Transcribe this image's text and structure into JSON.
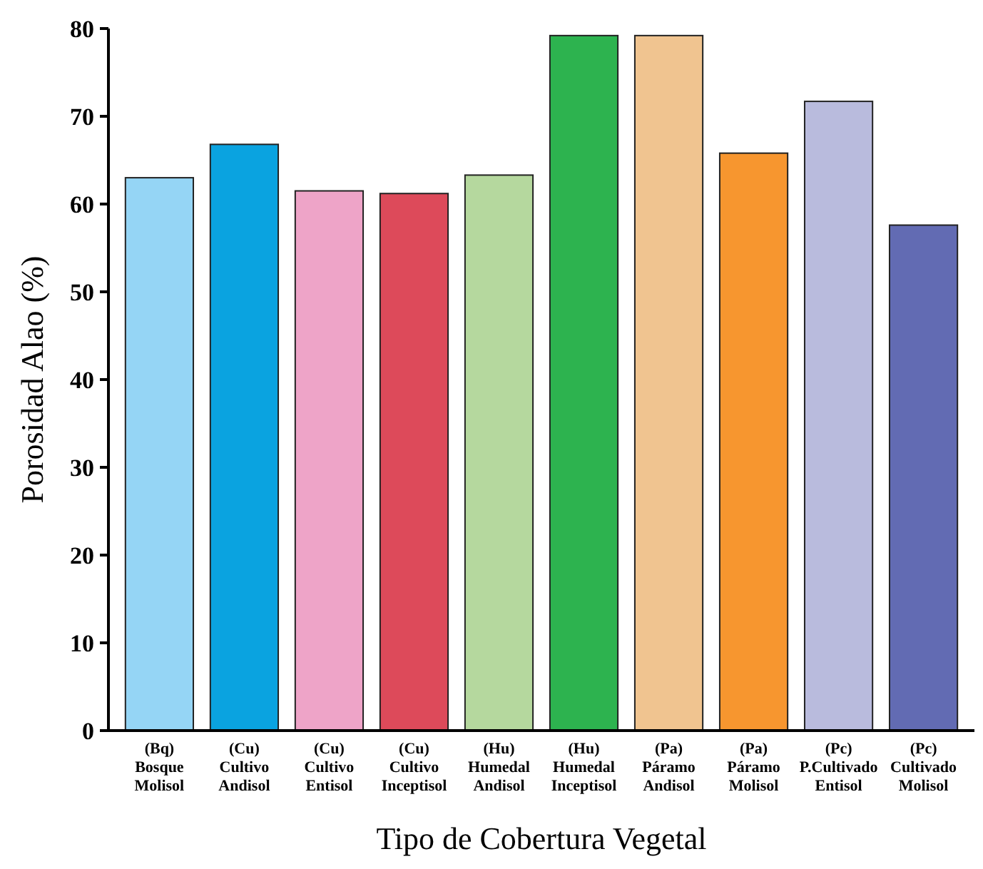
{
  "chart_data": {
    "type": "bar",
    "xlabel": "Tipo de Cobertura Vegetal",
    "ylabel": "Porosidad Alao (%)",
    "categories": [
      "(Bq)\nBosque\nMolisol",
      "(Cu)\nCultivo\nAndisol",
      "(Cu)\nCultivo\nEntisol",
      "(Cu)\nCultivo\nInceptisol",
      "(Hu)\nHumedal\nAndisol",
      "(Hu)\nHumedal\nInceptisol",
      "(Pa)\nPáramo\nAndisol",
      "(Pa)\nPáramo\nMolisol",
      "(Pc)\nP.Cultivado\nEntisol",
      "(Pc)\nCultivado\nMolisol"
    ],
    "values": [
      63.0,
      66.8,
      61.5,
      61.2,
      63.3,
      79.2,
      79.2,
      65.8,
      71.7,
      57.6
    ],
    "colors": [
      "#95d5f5",
      "#0aa3e0",
      "#eea4c8",
      "#dd4a5a",
      "#b5d89e",
      "#2db34f",
      "#f0c490",
      "#f7962f",
      "#b9bbdd",
      "#626bb3"
    ],
    "ylim": [
      0,
      80
    ],
    "yticks": [
      0,
      10,
      20,
      30,
      40,
      50,
      60,
      70,
      80
    ],
    "grid": false
  }
}
